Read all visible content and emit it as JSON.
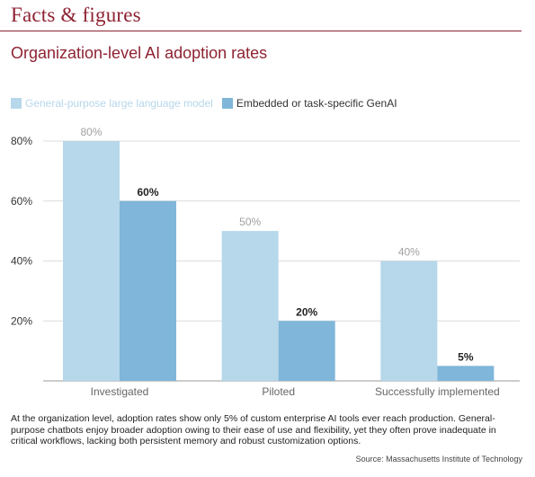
{
  "header": {
    "title": "Facts & figures"
  },
  "chart_data": {
    "type": "bar",
    "title": "Organization-level AI adoption rates",
    "categories": [
      "Investigated",
      "Piloted",
      "Successfully implemented"
    ],
    "series": [
      {
        "name": "General-purpose large language model",
        "values": [
          80,
          50,
          40
        ],
        "labels": [
          "80%",
          "50%",
          "40%"
        ],
        "color": "#b7d7ea"
      },
      {
        "name": "Embedded or task-specific GenAI",
        "values": [
          60,
          20,
          5
        ],
        "labels": [
          "60%",
          "20%",
          "5%"
        ],
        "color": "#7fb6d9"
      }
    ],
    "y_ticks": [
      {
        "value": 20,
        "label": "20%"
      },
      {
        "value": 40,
        "label": "40%"
      },
      {
        "value": 60,
        "label": "60%"
      },
      {
        "value": 80,
        "label": "80%"
      }
    ],
    "ylim": [
      0,
      80
    ],
    "grid": true,
    "legend_position": "top-left",
    "xlabel": "",
    "ylabel": ""
  },
  "caption": "At the organization level, adoption rates show only 5% of custom enterprise AI tools ever reach production. General-purpose chatbots enjoy broader adoption owing to their ease of use and flexibility, yet they often prove inadequate in critical workflows, lacking both persistent memory and robust customization options.",
  "source": "Source: Massachusetts Institute of Technology"
}
